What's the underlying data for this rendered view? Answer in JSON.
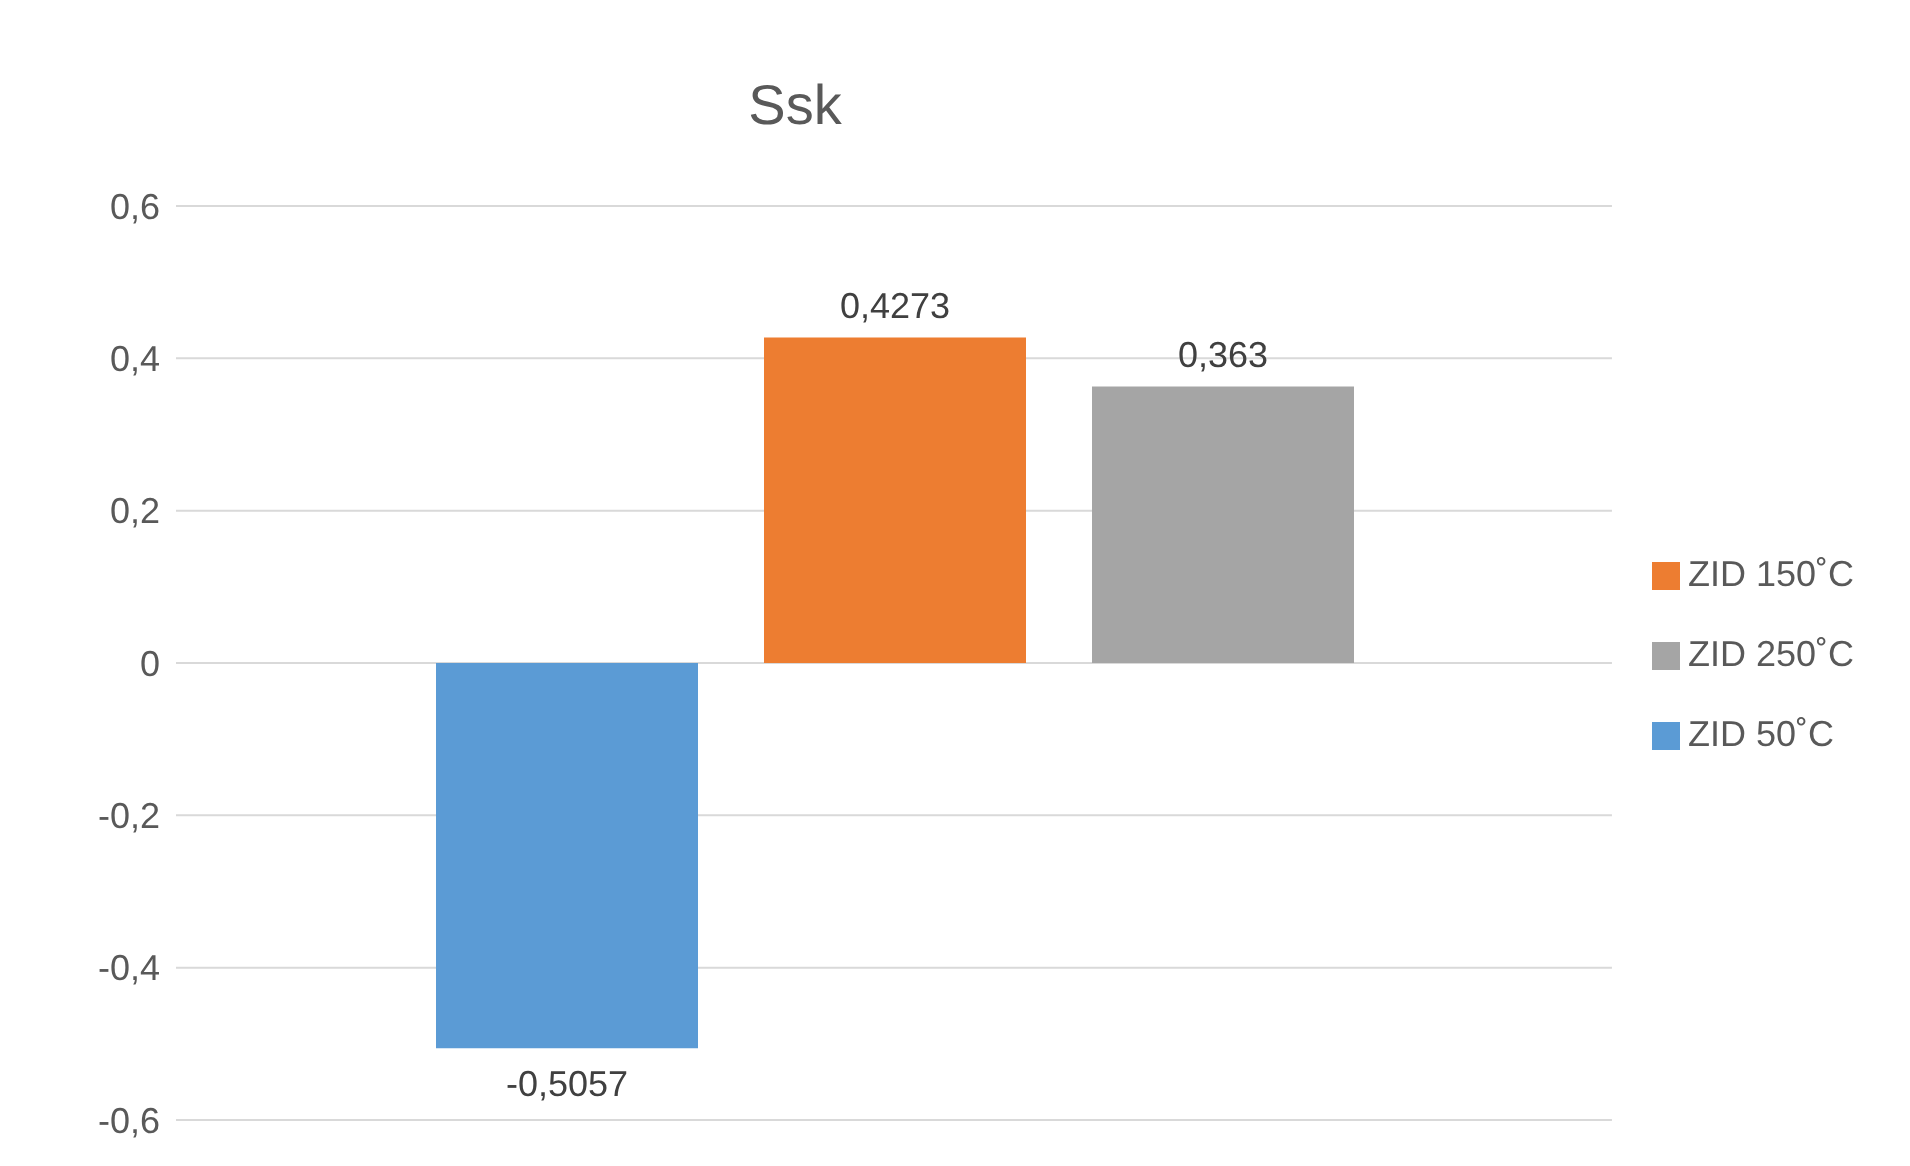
{
  "chart_data": {
    "type": "bar",
    "title": "Ssk",
    "categories": [
      null
    ],
    "series": [
      {
        "name": "ZID 50˚C",
        "color": "#5b9bd5",
        "values": [
          -0.5057
        ],
        "value_labels": [
          "-0,5057"
        ]
      },
      {
        "name": "ZID 150˚C",
        "color": "#ed7d31",
        "values": [
          0.4273
        ],
        "value_labels": [
          "0,4273"
        ]
      },
      {
        "name": "ZID 250˚C",
        "color": "#a5a5a5",
        "values": [
          0.363
        ],
        "value_labels": [
          "0,363"
        ]
      }
    ],
    "ylim": [
      -0.6,
      0.6
    ],
    "yticks": [
      {
        "value": -0.6,
        "label": "-0,6"
      },
      {
        "value": -0.4,
        "label": "-0,4"
      },
      {
        "value": -0.2,
        "label": "-0,2"
      },
      {
        "value": 0,
        "label": "0"
      },
      {
        "value": 0.2,
        "label": "0,2"
      },
      {
        "value": 0.4,
        "label": "0,4"
      },
      {
        "value": 0.6,
        "label": "0,6"
      }
    ],
    "grid": "y",
    "legend": "right"
  }
}
